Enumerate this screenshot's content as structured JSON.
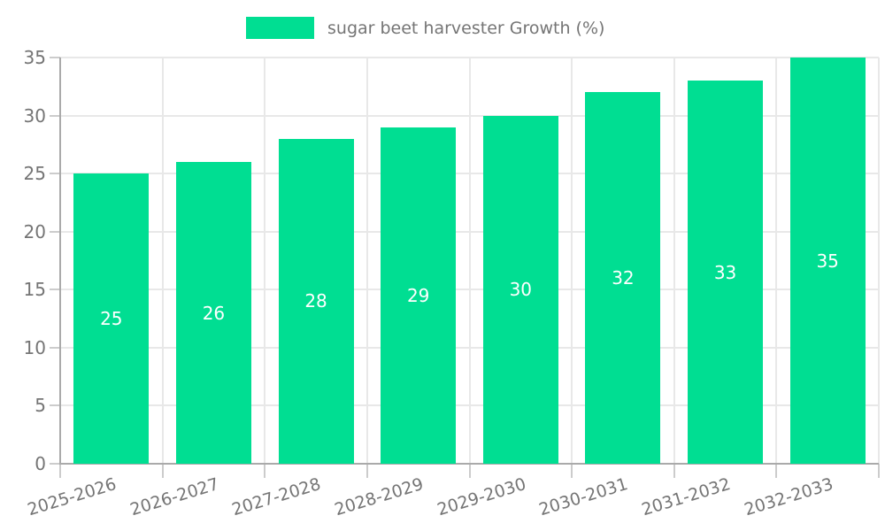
{
  "colors": {
    "bar": "#00DE92",
    "axis_line": "#aaaaaa",
    "gridline": "#e8e8e8",
    "tick": "#cccccc",
    "axis_text": "#757575",
    "bar_value_text": "#ffffff",
    "background": "#ffffff"
  },
  "legend": {
    "label": "sugar beet harvester Growth (%)"
  },
  "chart_data": {
    "type": "bar",
    "title": "",
    "xlabel": "",
    "ylabel": "",
    "legend_label": "sugar beet harvester Growth (%)",
    "legend_position": "top",
    "grid": true,
    "categories": [
      "2025-2026",
      "2026-2027",
      "2027-2028",
      "2028-2029",
      "2029-2030",
      "2030-2031",
      "2031-2032",
      "2032-2033"
    ],
    "values": [
      25,
      26,
      28,
      29,
      30,
      32,
      33,
      35
    ],
    "ylim": [
      0,
      35
    ],
    "ytick_step": 5,
    "value_label_position": "inside-center"
  }
}
